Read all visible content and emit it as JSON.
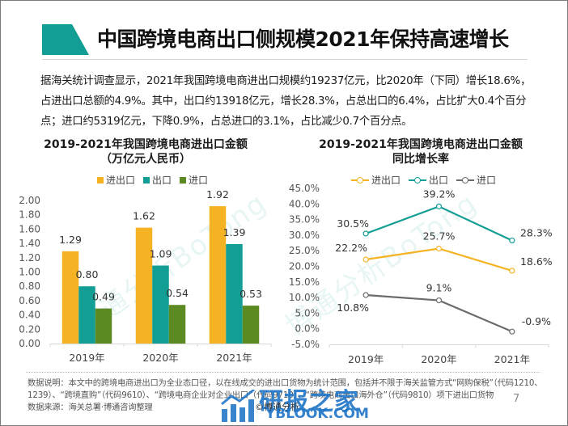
{
  "header": {
    "title": "中国跨境电商出口侧规模2021年保持高速增长",
    "accent_color": "#129e94"
  },
  "intro": {
    "text": "据海关统计调查显示，2021年我国跨境电商进出口规模约19237亿元，比2020年（下同）增长18.6%，占进出口总额的4.9%。其中，出口约13918亿元，增长28.3%，占总出口的6.4%，占比扩大0.4个百分点；进口约5319亿元，下降0.9%，占总进口的3.1%，占比减少0.7个百分点。"
  },
  "colors": {
    "total": "#f5b323",
    "export": "#129e94",
    "import": "#5c8a22",
    "import_line": "#6b6b6b"
  },
  "chart_data": [
    {
      "type": "bar",
      "title": "2019-2021年我国跨境电商进出口金额",
      "subtitle": "（万亿元人民币）",
      "categories": [
        "2019年",
        "2020年",
        "2021年"
      ],
      "series": [
        {
          "name": "进出口",
          "values": [
            1.29,
            1.62,
            1.92
          ],
          "labels": [
            "1.29",
            "1.62",
            "1.92"
          ]
        },
        {
          "name": "出口",
          "values": [
            0.8,
            1.09,
            1.39
          ],
          "labels": [
            "0.80",
            "1.09",
            "1.39"
          ]
        },
        {
          "name": "进口",
          "values": [
            0.49,
            0.54,
            0.53
          ],
          "labels": [
            "0.49",
            "0.54",
            "0.53"
          ]
        }
      ],
      "yticks": [
        "0.00",
        "0.20",
        "0.40",
        "0.60",
        "0.80",
        "1.00",
        "1.20",
        "1.40",
        "1.60",
        "1.80",
        "2.00"
      ],
      "ylim": [
        0,
        2.0
      ],
      "xlabel": "",
      "ylabel": "",
      "grid": false,
      "legend_position": "top"
    },
    {
      "type": "line",
      "title": "2019-2021年我国跨境电商进出口金额",
      "subtitle": "同比增长率",
      "categories": [
        "2019年",
        "2020年",
        "2021年"
      ],
      "series": [
        {
          "name": "进出口",
          "values": [
            22.2,
            25.7,
            18.6
          ],
          "labels": [
            "22.2%",
            "25.7%",
            "18.6%"
          ]
        },
        {
          "name": "出口",
          "values": [
            30.5,
            39.2,
            28.3
          ],
          "labels": [
            "30.5%",
            "39.2%",
            "28.3%"
          ]
        },
        {
          "name": "进口",
          "values": [
            10.8,
            9.1,
            -0.9
          ],
          "labels": [
            "10.8%",
            "9.1%",
            "-0.9%"
          ]
        }
      ],
      "yticks": [
        "-5.0%",
        "0.0%",
        "5.0%",
        "10.0%",
        "15.0%",
        "20.0%",
        "25.0%",
        "30.0%",
        "35.0%",
        "40.0%",
        "45.0%"
      ],
      "ylim": [
        -5,
        45
      ],
      "xlabel": "",
      "ylabel": "",
      "grid": false,
      "legend_position": "top"
    }
  ],
  "watermark": {
    "text": "博通分析BoTong"
  },
  "footer": {
    "note_line": "数据说明：本文中的跨境电商进出口为全业态口径，以在线成交的进出口货物为统计范围，包括并不限于海关监管方式“网购保税”（代码1210、1239）、“跨境直购”（代码9610）、“跨境电商企业对企业出口”（代码9710）、“跨境电商出口海外仓”（代码9810）项下进出口货物",
    "source_line": "数据来源：海关总署·博通咨询整理",
    "page_number": "7",
    "logo_cn": "研报之家",
    "logo_en": "YBLOOK.COM",
    "logo_copyright": "©博通分析"
  }
}
